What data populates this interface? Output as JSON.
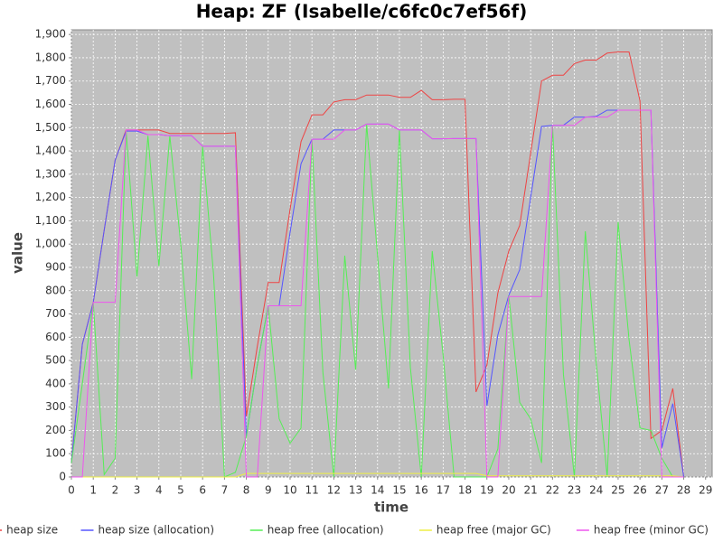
{
  "chart_data": {
    "type": "line",
    "title": "Heap: ZF (Isabelle/c6fc0c7ef56f)",
    "x_label": "time",
    "y_label": "value",
    "xlim": [
      0,
      29.3
    ],
    "ylim": [
      0,
      1920
    ],
    "xticks": [
      0,
      1,
      2,
      3,
      4,
      5,
      6,
      7,
      8,
      9,
      10,
      11,
      12,
      13,
      14,
      15,
      16,
      17,
      18,
      19,
      20,
      21,
      22,
      23,
      24,
      25,
      26,
      27,
      28,
      29
    ],
    "yticks": [
      0,
      100,
      200,
      300,
      400,
      500,
      600,
      700,
      800,
      900,
      {
        "value": 1000,
        "label": "1,000"
      },
      {
        "value": 1100,
        "label": "1,100"
      },
      {
        "value": 1200,
        "label": "1,200"
      },
      {
        "value": 1300,
        "label": "1,300"
      },
      {
        "value": 1400,
        "label": "1,400"
      },
      {
        "value": 1500,
        "label": "1,500"
      },
      {
        "value": 1600,
        "label": "1,600"
      },
      {
        "value": 1700,
        "label": "1,700"
      },
      {
        "value": 1800,
        "label": "1,800"
      },
      {
        "value": 1900,
        "label": "1,900"
      }
    ],
    "grid": true,
    "legend": "bottom",
    "x": [
      0,
      0.5,
      1,
      1.5,
      2,
      2.5,
      3,
      3.5,
      4,
      4.5,
      5,
      5.5,
      6,
      6.5,
      7,
      7.5,
      8,
      8.5,
      9,
      9.5,
      10,
      10.5,
      11,
      11.5,
      12,
      12.5,
      13,
      13.5,
      14,
      14.5,
      15,
      15.5,
      16,
      16.5,
      17,
      17.5,
      18,
      18.5,
      19,
      19.5,
      20,
      20.5,
      21,
      21.5,
      22,
      22.5,
      23,
      23.5,
      24,
      24.5,
      25,
      25.5,
      26,
      26.5,
      27,
      27.5,
      28
    ],
    "series": [
      {
        "name": "heap size",
        "color": "#ee4444",
        "values": [
          60,
          570,
          750,
          1060,
          1360,
          1490,
          1490,
          1490,
          1490,
          1475,
          1475,
          1475,
          1475,
          1475,
          1475,
          1478,
          260,
          560,
          835,
          835,
          1150,
          1440,
          1555,
          1555,
          1610,
          1620,
          1620,
          1640,
          1640,
          1640,
          1630,
          1630,
          1660,
          1620,
          1620,
          1622,
          1622,
          365,
          480,
          790,
          970,
          1080,
          1390,
          1700,
          1725,
          1725,
          1775,
          1790,
          1790,
          1820,
          1825,
          1825,
          1615,
          165,
          200,
          380,
          0
        ]
      },
      {
        "name": "heap size (allocation)",
        "color": "#5555ff",
        "values": [
          60,
          570,
          750,
          1060,
          1360,
          1485,
          1485,
          1470,
          1470,
          1465,
          1465,
          1465,
          1420,
          1420,
          1420,
          1420,
          175,
          480,
          735,
          735,
          1050,
          1345,
          1450,
          1450,
          1490,
          1490,
          1490,
          1515,
          1515,
          1515,
          1490,
          1490,
          1490,
          1452,
          1452,
          1453,
          1453,
          1453,
          305,
          610,
          780,
          890,
          1200,
          1505,
          1510,
          1510,
          1545,
          1545,
          1548,
          1575,
          1575,
          1575,
          1575,
          1575,
          125,
          315,
          0
        ]
      },
      {
        "name": "heap free (allocation)",
        "color": "#55ee55",
        "values": [
          60,
          400,
          750,
          10,
          80,
          1490,
          860,
          1465,
          905,
          1465,
          1000,
          420,
          1420,
          870,
          0,
          20,
          175,
          480,
          735,
          250,
          145,
          210,
          1450,
          450,
          0,
          950,
          460,
          1515,
          950,
          380,
          1490,
          470,
          0,
          970,
          520,
          0,
          0,
          0,
          0,
          120,
          780,
          320,
          250,
          60,
          1510,
          440,
          0,
          1055,
          490,
          0,
          1095,
          590,
          210,
          200,
          80,
          0,
          0
        ]
      },
      {
        "name": "heap free (major GC)",
        "color": "#eeee44",
        "values": [
          0,
          0,
          0,
          0,
          0,
          0,
          0,
          0,
          0,
          0,
          0,
          0,
          0,
          0,
          0,
          0,
          15,
          15,
          15,
          15,
          15,
          15,
          15,
          15,
          15,
          15,
          15,
          15,
          15,
          15,
          15,
          15,
          15,
          15,
          15,
          15,
          15,
          15,
          5,
          5,
          5,
          5,
          5,
          5,
          5,
          5,
          5,
          5,
          5,
          5,
          5,
          5,
          5,
          5,
          5,
          5,
          0
        ]
      },
      {
        "name": "heap free (minor GC)",
        "color": "#ee55ee",
        "values": [
          0,
          0,
          750,
          750,
          750,
          1490,
          1490,
          1470,
          1470,
          1465,
          1465,
          1465,
          1420,
          1420,
          1420,
          1420,
          0,
          0,
          735,
          735,
          735,
          735,
          1450,
          1450,
          1450,
          1490,
          1490,
          1515,
          1515,
          1515,
          1490,
          1490,
          1490,
          1452,
          1452,
          1453,
          1453,
          1453,
          0,
          0,
          775,
          775,
          775,
          775,
          1510,
          1510,
          1510,
          1545,
          1545,
          1545,
          1575,
          1575,
          1575,
          1575,
          0,
          0,
          0
        ]
      }
    ]
  }
}
